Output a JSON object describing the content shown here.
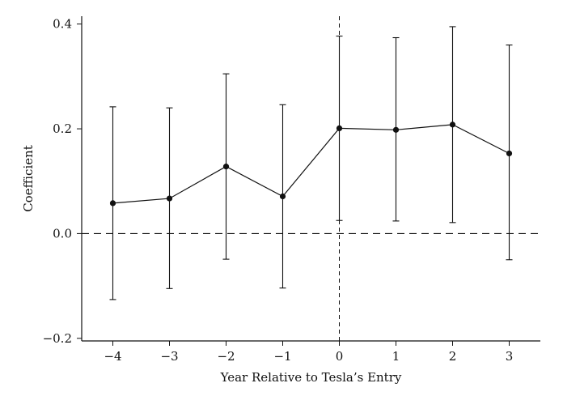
{
  "chart_data": {
    "type": "line",
    "title": "",
    "xlabel": "Year Relative to Tesla’s Entry",
    "ylabel": "Coefficient",
    "x": [
      -4,
      -3,
      -2,
      -1,
      0,
      1,
      2,
      3
    ],
    "x_tick_labels": [
      "−4",
      "−3",
      "−2",
      "−1",
      "0",
      "1",
      "2",
      "3"
    ],
    "y_ticks": [
      -0.2,
      0.0,
      0.2,
      0.4
    ],
    "y_tick_labels": [
      "−0.2",
      "0.0",
      "0.2",
      "0.4"
    ],
    "xlim": [
      -4.55,
      3.55
    ],
    "ylim": [
      -0.205,
      0.415
    ],
    "series": [
      {
        "values": [
          0.058,
          0.067,
          0.128,
          0.071,
          0.201,
          0.198,
          0.208,
          0.153
        ],
        "ci_low": [
          -0.126,
          -0.105,
          -0.049,
          -0.104,
          0.025,
          0.024,
          0.021,
          -0.05
        ],
        "ci_high": [
          0.242,
          0.24,
          0.305,
          0.246,
          0.377,
          0.374,
          0.395,
          0.36
        ]
      }
    ],
    "reference_lines": {
      "horizontal_y": 0.0,
      "vertical_x": 0
    },
    "grid": false,
    "legend": "none"
  }
}
